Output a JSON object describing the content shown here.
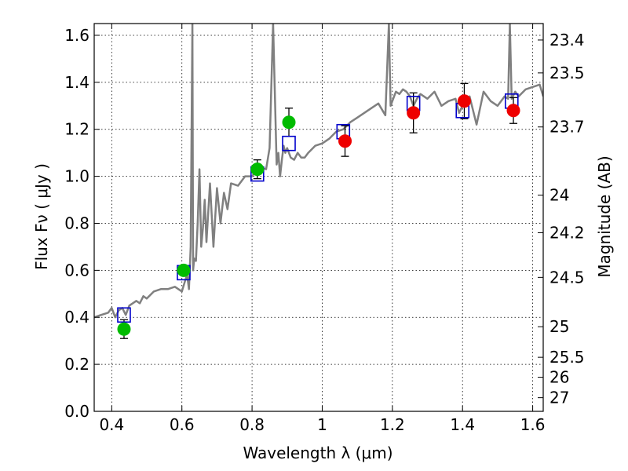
{
  "chart_data": {
    "type": "scatter",
    "xlabel": "Wavelength  λ (μm)",
    "ylabel": "Flux  Fν  ( μJy )",
    "y2label": "Magnitude (AB)",
    "xlim": [
      0.35,
      1.63
    ],
    "ylim": [
      0.0,
      1.65
    ],
    "grid": true,
    "x_ticks": [
      {
        "value": 0.4,
        "label": "0.4"
      },
      {
        "value": 0.6,
        "label": "0.6"
      },
      {
        "value": 0.8,
        "label": "0.8"
      },
      {
        "value": 1.0,
        "label": "1"
      },
      {
        "value": 1.2,
        "label": "1.2"
      },
      {
        "value": 1.4,
        "label": "1.4"
      },
      {
        "value": 1.6,
        "label": "1.6"
      }
    ],
    "y_ticks": [
      {
        "value": 0.0,
        "label": "0.0"
      },
      {
        "value": 0.2,
        "label": "0.2"
      },
      {
        "value": 0.4,
        "label": "0.4"
      },
      {
        "value": 0.6,
        "label": "0.6"
      },
      {
        "value": 0.8,
        "label": "0.8"
      },
      {
        "value": 1.0,
        "label": "1.0"
      },
      {
        "value": 1.2,
        "label": "1.2"
      },
      {
        "value": 1.4,
        "label": "1.4"
      },
      {
        "value": 1.6,
        "label": "1.6"
      }
    ],
    "y2_ticks": [
      {
        "flux": 1.58,
        "label": "23.4"
      },
      {
        "flux": 1.44,
        "label": "23.5"
      },
      {
        "flux": 1.21,
        "label": "23.7"
      },
      {
        "flux": 0.92,
        "label": "24"
      },
      {
        "flux": 0.76,
        "label": "24.2"
      },
      {
        "flux": 0.57,
        "label": "24.5"
      },
      {
        "flux": 0.36,
        "label": "25"
      },
      {
        "flux": 0.23,
        "label": "25.5"
      },
      {
        "flux": 0.145,
        "label": "26"
      },
      {
        "flux": 0.058,
        "label": "27"
      }
    ],
    "series": [
      {
        "kind": "line",
        "color": "#808080",
        "x": [
          0.35,
          0.37,
          0.39,
          0.4,
          0.41,
          0.42,
          0.43,
          0.44,
          0.45,
          0.46,
          0.47,
          0.48,
          0.49,
          0.5,
          0.52,
          0.54,
          0.56,
          0.58,
          0.6,
          0.61,
          0.615,
          0.62,
          0.625,
          0.63,
          0.632,
          0.635,
          0.64,
          0.645,
          0.65,
          0.655,
          0.66,
          0.665,
          0.67,
          0.68,
          0.69,
          0.7,
          0.71,
          0.72,
          0.73,
          0.74,
          0.76,
          0.78,
          0.8,
          0.82,
          0.84,
          0.85,
          0.86,
          0.87,
          0.875,
          0.88,
          0.885,
          0.89,
          0.895,
          0.9,
          0.91,
          0.92,
          0.93,
          0.94,
          0.95,
          0.96,
          0.98,
          1.0,
          1.02,
          1.04,
          1.06,
          1.08,
          1.1,
          1.12,
          1.14,
          1.16,
          1.18,
          1.19,
          1.195,
          1.2,
          1.21,
          1.22,
          1.23,
          1.24,
          1.25,
          1.26,
          1.27,
          1.28,
          1.3,
          1.32,
          1.34,
          1.36,
          1.38,
          1.39,
          1.4,
          1.42,
          1.44,
          1.46,
          1.48,
          1.5,
          1.52,
          1.53,
          1.535,
          1.54,
          1.55,
          1.56,
          1.58,
          1.6,
          1.62,
          1.63
        ],
        "y": [
          0.4,
          0.41,
          0.42,
          0.44,
          0.4,
          0.43,
          0.44,
          0.41,
          0.45,
          0.46,
          0.47,
          0.46,
          0.49,
          0.48,
          0.51,
          0.52,
          0.52,
          0.53,
          0.51,
          0.56,
          0.58,
          0.52,
          0.7,
          1.65,
          0.6,
          0.65,
          0.64,
          0.8,
          1.03,
          0.7,
          0.78,
          0.9,
          0.72,
          0.97,
          0.7,
          0.95,
          0.8,
          0.93,
          0.86,
          0.97,
          0.96,
          1.0,
          1.0,
          1.04,
          1.03,
          1.12,
          1.65,
          1.05,
          1.1,
          1.0,
          1.07,
          1.13,
          1.1,
          1.12,
          1.08,
          1.07,
          1.1,
          1.08,
          1.08,
          1.1,
          1.13,
          1.14,
          1.16,
          1.19,
          1.2,
          1.23,
          1.25,
          1.27,
          1.29,
          1.31,
          1.26,
          1.65,
          1.3,
          1.32,
          1.36,
          1.35,
          1.37,
          1.36,
          1.34,
          1.3,
          1.33,
          1.35,
          1.33,
          1.36,
          1.3,
          1.32,
          1.33,
          1.27,
          1.3,
          1.34,
          1.22,
          1.36,
          1.32,
          1.3,
          1.34,
          1.33,
          1.65,
          1.33,
          1.36,
          1.34,
          1.37,
          1.38,
          1.39,
          1.34
        ]
      },
      {
        "kind": "marker",
        "marker": "square",
        "color": "#0000cc",
        "x": [
          0.435,
          0.605,
          0.815,
          0.905,
          1.06,
          1.26,
          1.4,
          1.54
        ],
        "y": [
          0.41,
          0.59,
          1.01,
          1.14,
          1.19,
          1.31,
          1.28,
          1.32
        ]
      },
      {
        "kind": "marker",
        "marker": "circle",
        "color": "#00bb00",
        "x": [
          0.435,
          0.605,
          0.815,
          0.905
        ],
        "y": [
          0.35,
          0.6,
          1.03,
          1.23
        ],
        "err": [
          0.04,
          0.02,
          0.04,
          0.06
        ]
      },
      {
        "kind": "marker",
        "marker": "circle",
        "color": "#ee0000",
        "x": [
          1.065,
          1.26,
          1.405,
          1.545
        ],
        "y": [
          1.15,
          1.27,
          1.32,
          1.28
        ],
        "err": [
          0.065,
          0.085,
          0.075,
          0.055
        ]
      }
    ]
  }
}
